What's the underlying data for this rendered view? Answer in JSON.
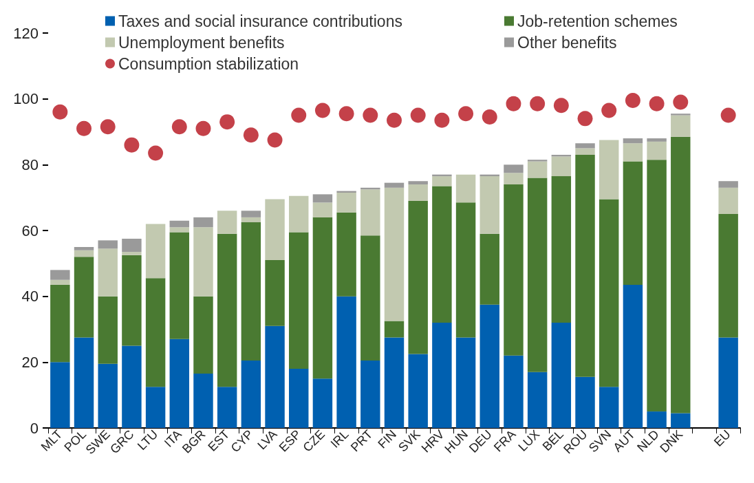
{
  "chart_data": {
    "type": "bar",
    "stacked": true,
    "categories": [
      "MLT",
      "POL",
      "SWE",
      "GRC",
      "LTU",
      "ITA",
      "BGR",
      "EST",
      "CYP",
      "LVA",
      "ESP",
      "CZE",
      "IRL",
      "PRT",
      "FIN",
      "SVK",
      "HRV",
      "HUN",
      "DEU",
      "FRA",
      "LUX",
      "BEL",
      "ROU",
      "SVN",
      "AUT",
      "NLD",
      "DNK",
      null,
      "EU"
    ],
    "ylim": [
      0,
      120
    ],
    "yticks": [
      0,
      20,
      40,
      60,
      80,
      100,
      120
    ],
    "grid": false,
    "legend": "top",
    "marker": "circle",
    "series": [
      {
        "name": "Taxes and social insurance contributions",
        "color": "#0060b0",
        "values": [
          20,
          27.5,
          19.5,
          25,
          12.5,
          27,
          16.5,
          12.5,
          20.5,
          31,
          18,
          15,
          40,
          20.5,
          27.5,
          22.5,
          32,
          27.5,
          37.5,
          22,
          17,
          32,
          15.5,
          12.5,
          43.5,
          5,
          4.5,
          null,
          27.5
        ]
      },
      {
        "name": "Job-retention schemes",
        "color": "#4a7a32",
        "values": [
          23.5,
          24.5,
          20.5,
          27.5,
          33,
          32.5,
          23.5,
          46.5,
          42,
          20,
          41.5,
          49,
          25.5,
          38,
          5,
          46.5,
          41.5,
          41,
          21.5,
          52,
          59,
          44.5,
          67.5,
          57,
          37.5,
          76.5,
          84,
          null,
          37.5
        ]
      },
      {
        "name": "Unemployment benefits",
        "color": "#c2c9b0",
        "values": [
          1.5,
          2,
          14.5,
          1,
          16.5,
          1.5,
          21,
          7,
          1.5,
          18.5,
          11,
          4.5,
          6,
          14,
          40.5,
          5,
          3,
          8.5,
          17.5,
          3.5,
          5,
          6,
          2,
          18,
          5.5,
          5.5,
          6.5,
          null,
          8
        ]
      },
      {
        "name": "Other benefits",
        "color": "#9a9a9a",
        "values": [
          3,
          1,
          2.5,
          4,
          0,
          2,
          3,
          0,
          2,
          0,
          0,
          2.5,
          0.5,
          0.5,
          1.5,
          1,
          0.5,
          0,
          0.5,
          2.5,
          0.5,
          0.5,
          1.5,
          0,
          1.5,
          1,
          0.5,
          null,
          2
        ]
      },
      {
        "name": "Consumption stabilization",
        "type": "scatter",
        "color": "#b5121b",
        "x": [
          "MLT",
          "POL",
          "SWE",
          "GRC",
          "LTU",
          "ITA",
          "BGR",
          "EST",
          "CYP",
          "LVA",
          "ESP",
          "CZE",
          "IRL",
          "PRT",
          "FIN",
          "SVK",
          "HRV",
          "HUN",
          "DEU",
          "FRA",
          "LUX",
          "BEL",
          "ROU",
          "SVN",
          "AUT",
          "NLD",
          "DNK",
          "EU"
        ],
        "values": [
          96,
          91,
          91.5,
          86,
          83.5,
          91.5,
          91,
          93,
          89,
          87.5,
          95,
          96.5,
          95.5,
          95,
          93.5,
          95,
          93.5,
          95.5,
          94.5,
          98.5,
          98.5,
          98,
          94,
          96.5,
          99.5,
          98.5,
          99,
          95
        ]
      }
    ]
  }
}
